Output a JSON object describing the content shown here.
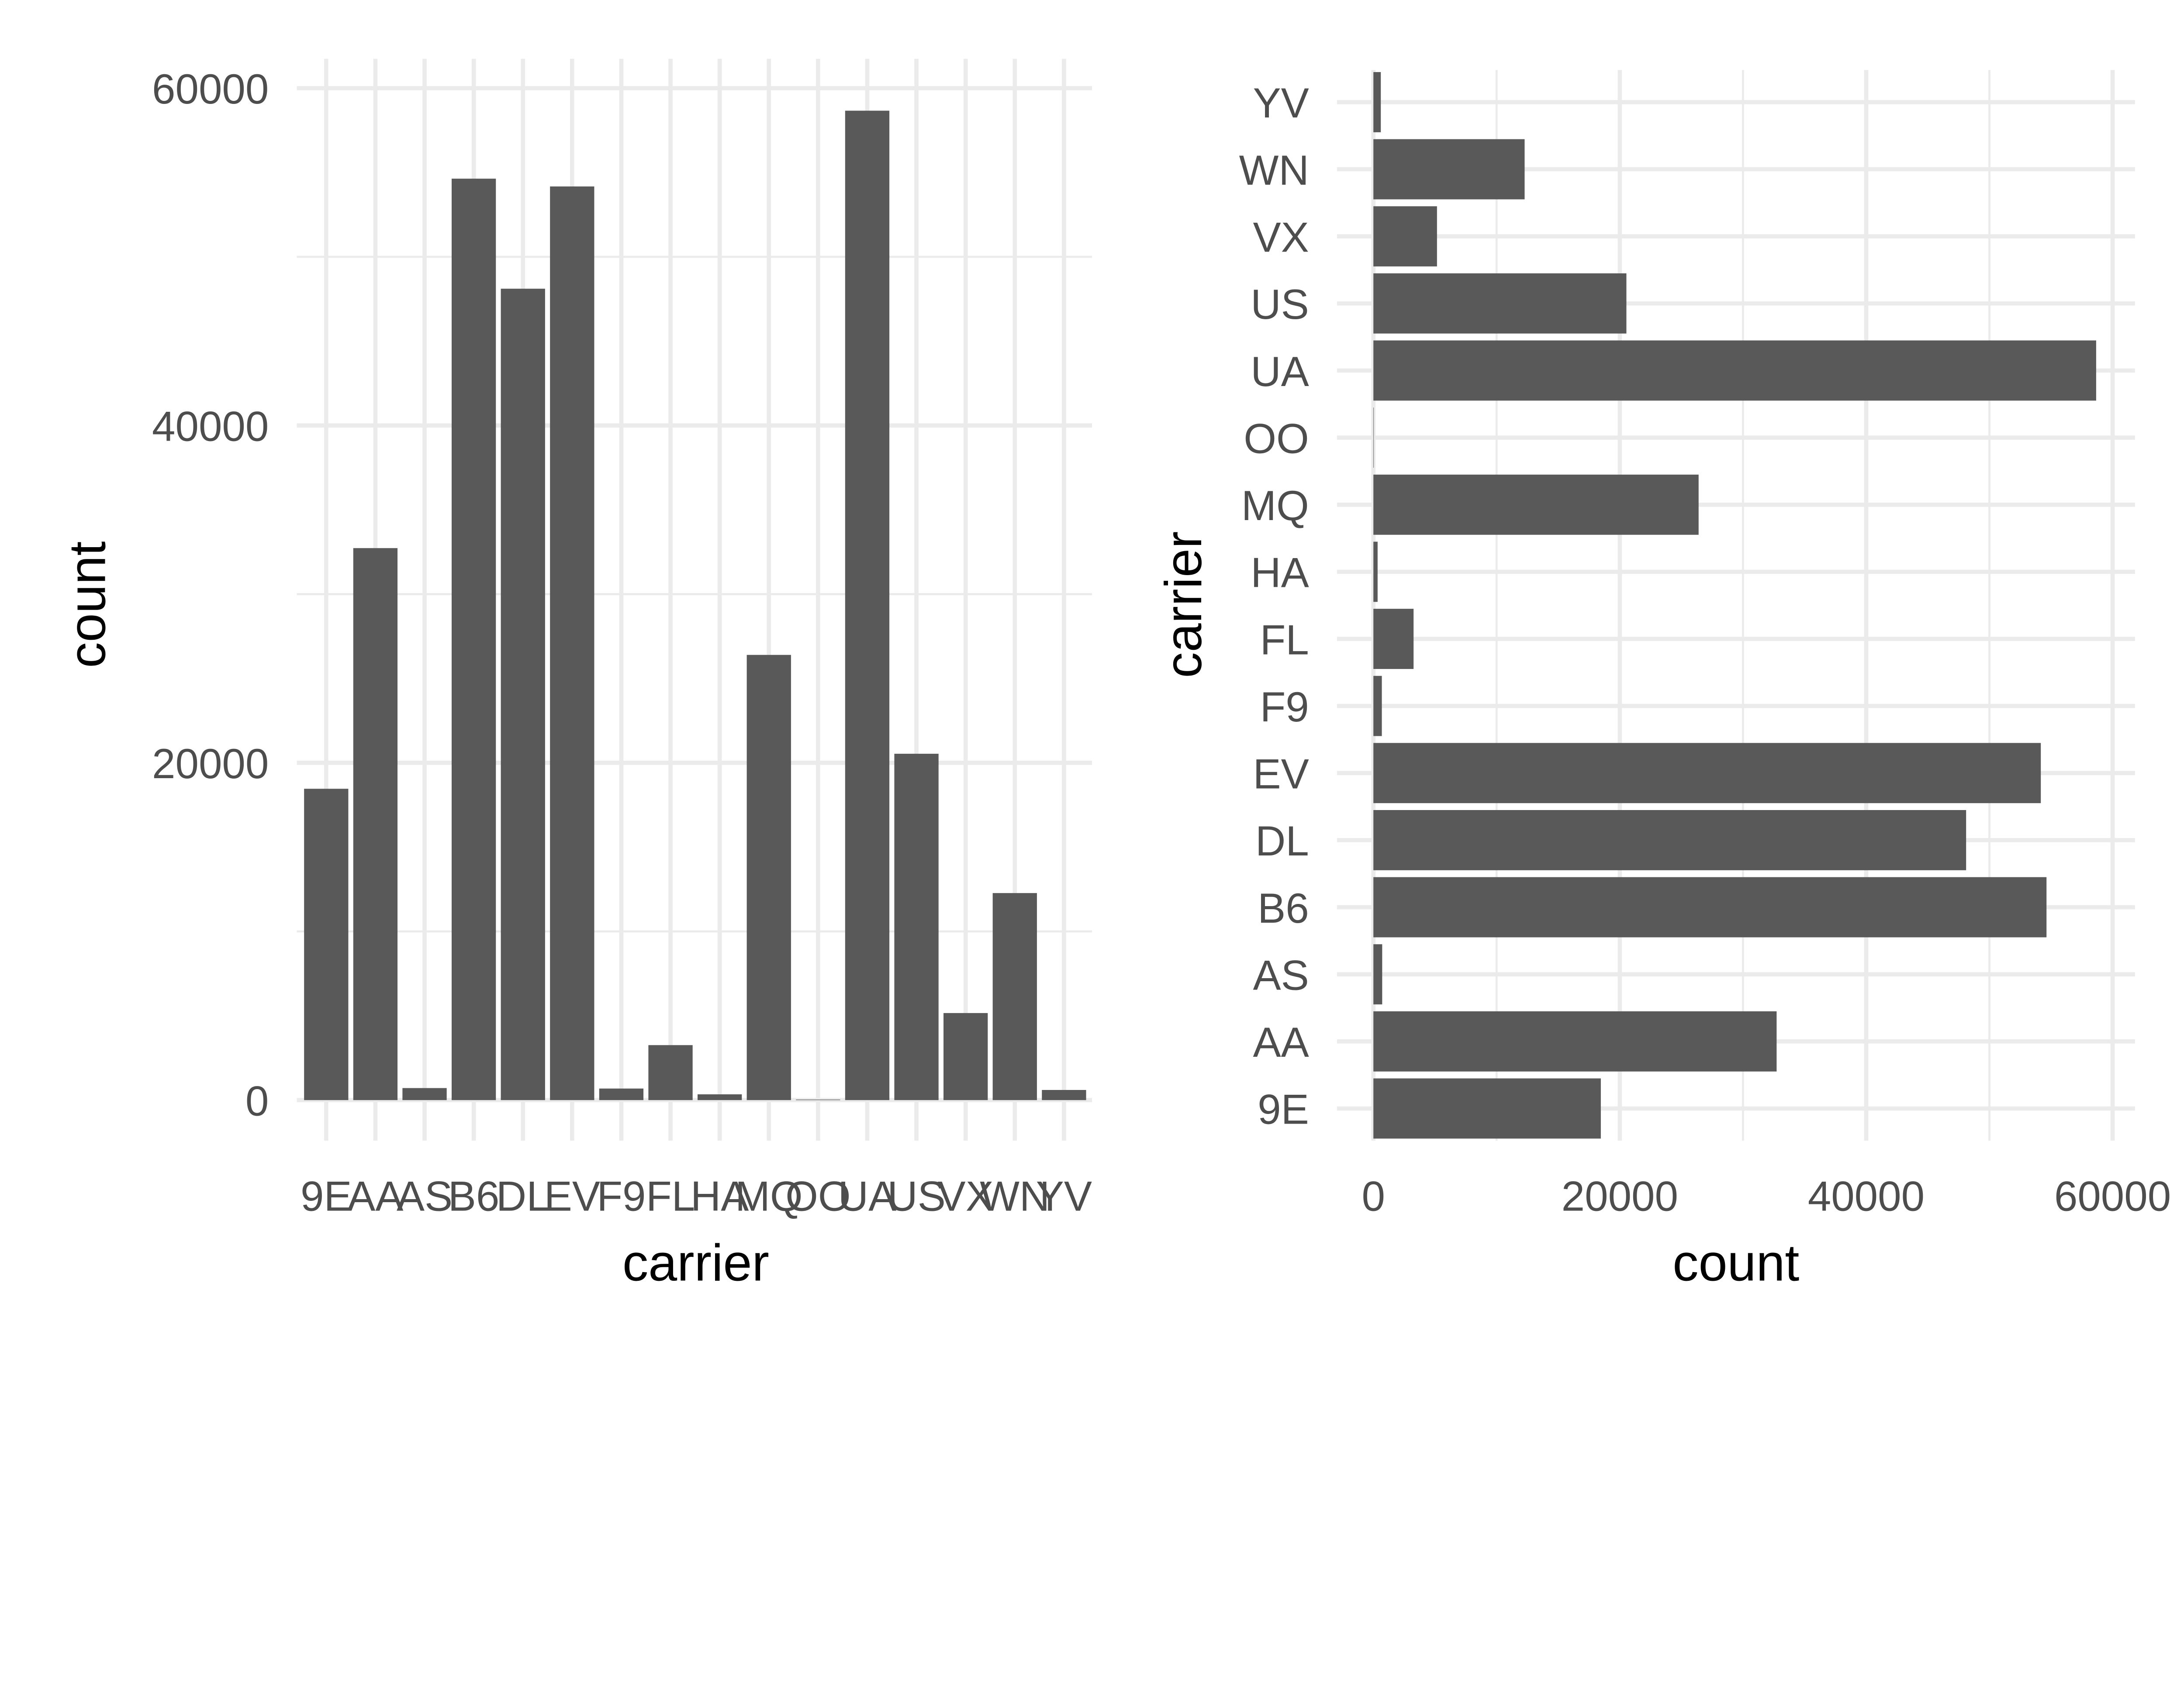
{
  "chart_data": [
    {
      "type": "bar",
      "orientation": "vertical",
      "categories": [
        "9E",
        "AA",
        "AS",
        "B6",
        "DL",
        "EV",
        "F9",
        "FL",
        "HA",
        "MQ",
        "OO",
        "UA",
        "US",
        "VX",
        "WN",
        "YV"
      ],
      "values": [
        18460,
        32729,
        714,
        54635,
        48110,
        54173,
        685,
        3260,
        342,
        26397,
        32,
        58665,
        20536,
        5162,
        12275,
        601
      ],
      "xlabel": "carrier",
      "ylabel": "count",
      "ylim": [
        0,
        60000
      ],
      "yticks": [
        "0",
        "20000",
        "40000",
        "60000"
      ],
      "grid": true,
      "bar_color": "#595959"
    },
    {
      "type": "bar",
      "orientation": "horizontal",
      "categories": [
        "9E",
        "AA",
        "AS",
        "B6",
        "DL",
        "EV",
        "F9",
        "FL",
        "HA",
        "MQ",
        "OO",
        "UA",
        "US",
        "VX",
        "WN",
        "YV"
      ],
      "values": [
        18460,
        32729,
        714,
        54635,
        48110,
        54173,
        685,
        3260,
        342,
        26397,
        32,
        58665,
        20536,
        5162,
        12275,
        601
      ],
      "xlabel": "count",
      "ylabel": "carrier",
      "xlim": [
        0,
        60000
      ],
      "xticks": [
        "0",
        "20000",
        "40000",
        "60000"
      ],
      "grid": true,
      "bar_color": "#595959"
    }
  ]
}
